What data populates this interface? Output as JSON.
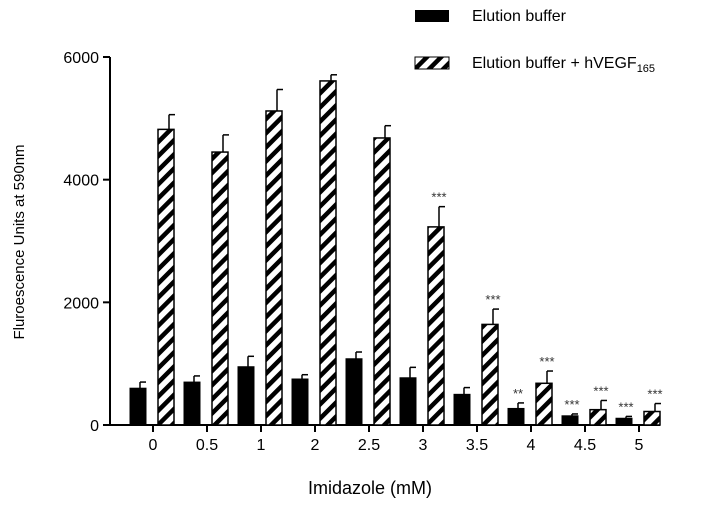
{
  "chart_data": {
    "type": "bar",
    "title": "",
    "xlabel": "Imidazole (mM)",
    "ylabel": "Fluroescence Units at 590nm",
    "ylim": [
      0,
      6000
    ],
    "yticks": [
      0,
      2000,
      4000,
      6000
    ],
    "categories": [
      "0",
      "0.5",
      "1",
      "2",
      "2.5",
      "3",
      "3.5",
      "4",
      "4.5",
      "5"
    ],
    "legend_position": "top-right",
    "grid": false,
    "series": [
      {
        "name": "Elution buffer",
        "pattern": "solid",
        "color": "#000000",
        "values": [
          600,
          700,
          950,
          750,
          1080,
          770,
          500,
          270,
          150,
          110
        ],
        "errors": [
          100,
          100,
          170,
          70,
          110,
          170,
          110,
          90,
          30,
          30
        ],
        "significance": [
          "",
          "",
          "",
          "",
          "",
          "",
          "",
          "**",
          "***",
          "***"
        ]
      },
      {
        "name_main": "Elution buffer + hVEGF",
        "name_sub": "165",
        "pattern": "hatched",
        "color": "#000000",
        "values": [
          4820,
          4450,
          5120,
          5610,
          4680,
          3230,
          1640,
          680,
          250,
          220
        ],
        "errors": [
          240,
          280,
          350,
          100,
          200,
          330,
          250,
          200,
          150,
          130
        ],
        "significance": [
          "",
          "",
          "",
          "",
          "",
          "***",
          "***",
          "***",
          "***",
          "***"
        ]
      }
    ]
  }
}
